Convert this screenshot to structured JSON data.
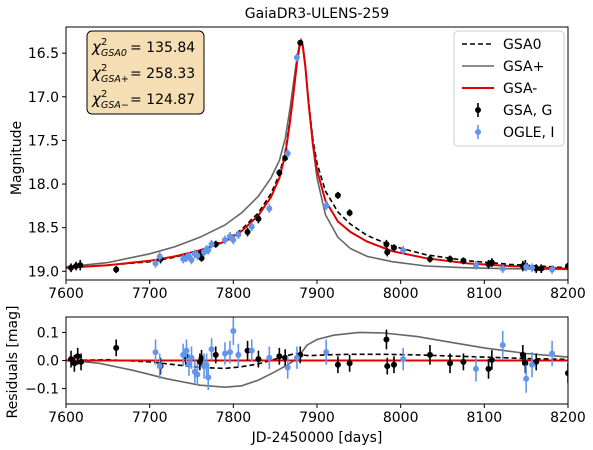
{
  "chart_data": [
    {
      "type": "scatter",
      "title": "GaiaDR3-ULENS-259",
      "xlabel": "",
      "ylabel": "Magnitude",
      "xlim": [
        7600,
        8200
      ],
      "ylim": [
        16.2,
        19.1
      ],
      "y_inverted": true,
      "xticks": [
        "7600",
        "7700",
        "7800",
        "7900",
        "8000",
        "8100",
        "8200"
      ],
      "yticks": [
        "16.5",
        "17.0",
        "17.5",
        "18.0",
        "18.5",
        "19.0"
      ],
      "legend_position": "top-right",
      "chi2_box": [
        "= 135.84",
        "= 258.33",
        "= 124.87"
      ],
      "chi2_labels": [
        "GSA0",
        "GSA+",
        "GSA−"
      ],
      "series": [
        {
          "name": "GSA0",
          "kind": "model",
          "color": "#000000",
          "dash": true,
          "x": [
            7600,
            7650,
            7700,
            7730,
            7760,
            7790,
            7810,
            7830,
            7845,
            7855,
            7862,
            7868,
            7872,
            7876,
            7879,
            7881,
            7883,
            7886,
            7890,
            7895,
            7900,
            7910,
            7925,
            7940,
            7960,
            7990,
            8030,
            8080,
            8130,
            8200
          ],
          "y": [
            18.96,
            18.93,
            18.89,
            18.84,
            18.76,
            18.65,
            18.52,
            18.33,
            18.11,
            17.89,
            17.63,
            17.24,
            16.92,
            16.6,
            16.42,
            16.37,
            16.42,
            16.65,
            17.05,
            17.48,
            17.76,
            18.08,
            18.32,
            18.46,
            18.59,
            18.71,
            18.81,
            18.88,
            18.92,
            18.96
          ]
        },
        {
          "name": "GSA+",
          "kind": "model",
          "color": "#666666",
          "dash": false,
          "x": [
            7600,
            7650,
            7700,
            7730,
            7760,
            7790,
            7810,
            7830,
            7845,
            7855,
            7862,
            7868,
            7872,
            7876,
            7879,
            7881,
            7883,
            7886,
            7890,
            7895,
            7900,
            7910,
            7925,
            7940,
            7960,
            7990,
            8030,
            8080,
            8130,
            8200
          ],
          "y": [
            18.95,
            18.9,
            18.8,
            18.72,
            18.61,
            18.47,
            18.33,
            18.14,
            17.93,
            17.73,
            17.48,
            17.12,
            16.83,
            16.56,
            16.4,
            16.35,
            16.4,
            16.63,
            17.06,
            17.56,
            17.93,
            18.35,
            18.61,
            18.74,
            18.83,
            18.89,
            18.94,
            18.96,
            18.97,
            18.98
          ]
        },
        {
          "name": "GSA-",
          "kind": "model",
          "color": "#e00000",
          "dash": false,
          "x": [
            7600,
            7650,
            7700,
            7730,
            7760,
            7790,
            7810,
            7830,
            7845,
            7855,
            7862,
            7868,
            7872,
            7876,
            7879,
            7881,
            7883,
            7886,
            7890,
            7895,
            7900,
            7910,
            7925,
            7940,
            7960,
            7990,
            8030,
            8080,
            8130,
            8200
          ],
          "y": [
            18.96,
            18.93,
            18.88,
            18.83,
            18.76,
            18.66,
            18.54,
            18.36,
            18.15,
            17.93,
            17.67,
            17.27,
            16.95,
            16.62,
            16.43,
            16.36,
            16.42,
            16.65,
            17.08,
            17.53,
            17.84,
            18.19,
            18.43,
            18.55,
            18.66,
            18.77,
            18.85,
            18.91,
            18.94,
            18.97
          ]
        },
        {
          "name": "GSA, G",
          "kind": "data",
          "color": "#000000",
          "x": [
            7606,
            7612,
            7617,
            7660,
            7713,
            7743,
            7760,
            7762,
            7779,
            7817,
            7830,
            7855,
            7862,
            7880,
            7925,
            7939,
            7983,
            7984,
            7992,
            8035,
            8059,
            8075,
            8105,
            8109,
            8146,
            8149,
            8162,
            8168,
            8200
          ],
          "y": [
            18.96,
            18.94,
            18.93,
            18.98,
            18.86,
            18.84,
            18.8,
            18.85,
            18.69,
            18.55,
            18.4,
            17.87,
            17.7,
            16.38,
            18.13,
            18.33,
            18.69,
            18.78,
            18.73,
            18.86,
            18.86,
            18.88,
            18.92,
            18.9,
            18.94,
            18.93,
            18.97,
            18.97,
            18.94
          ],
          "err": [
            0.05,
            0.05,
            0.06,
            0.04,
            0.05,
            0.05,
            0.05,
            0.04,
            0.04,
            0.05,
            0.05,
            0.04,
            0.04,
            0.03,
            0.04,
            0.04,
            0.05,
            0.05,
            0.04,
            0.04,
            0.04,
            0.04,
            0.05,
            0.05,
            0.06,
            0.06,
            0.05,
            0.05,
            0.04
          ]
        },
        {
          "name": "OGLE, I",
          "kind": "data",
          "color": "#6495ed",
          "x": [
            7707,
            7712,
            7740,
            7744,
            7747,
            7750,
            7754,
            7757,
            7765,
            7768,
            7770,
            7774,
            7790,
            7796,
            7800,
            7806,
            7822,
            7843,
            7865,
            7876,
            7911,
            8003,
            8090,
            8122,
            8150,
            8157,
            8181
          ],
          "y": [
            18.91,
            18.83,
            18.86,
            18.84,
            18.83,
            18.87,
            18.8,
            18.82,
            18.78,
            18.75,
            18.76,
            18.69,
            18.64,
            18.6,
            18.64,
            18.58,
            18.49,
            18.28,
            17.65,
            16.55,
            18.25,
            18.76,
            18.93,
            18.97,
            18.95,
            18.96,
            18.98
          ],
          "err": [
            0.05,
            0.05,
            0.05,
            0.05,
            0.05,
            0.05,
            0.05,
            0.05,
            0.05,
            0.05,
            0.05,
            0.05,
            0.05,
            0.05,
            0.05,
            0.05,
            0.05,
            0.05,
            0.05,
            0.05,
            0.05,
            0.05,
            0.05,
            0.05,
            0.05,
            0.05,
            0.05
          ]
        }
      ]
    },
    {
      "type": "scatter",
      "title": "",
      "xlabel": "JD-2450000 [days]",
      "ylabel": "Residuals [mag]",
      "xlim": [
        7600,
        8200
      ],
      "ylim": [
        -0.155,
        0.155
      ],
      "xticks": [
        "7600",
        "7700",
        "7800",
        "7900",
        "8000",
        "8100",
        "8200"
      ],
      "yticks": [
        "0.1",
        "0.0",
        "−0.1"
      ],
      "series": [
        {
          "name": "GSA0",
          "kind": "model",
          "color": "#000000",
          "dash": true,
          "x": [
            7600,
            7650,
            7700,
            7730,
            7760,
            7790,
            7810,
            7830,
            7850,
            7865,
            7875,
            7882,
            7890,
            7910,
            7940,
            7980,
            8020,
            8060,
            8100,
            8150,
            8200
          ],
          "y": [
            0,
            0.003,
            -0.005,
            -0.015,
            -0.025,
            -0.028,
            -0.022,
            -0.012,
            0.005,
            0.018,
            0.025,
            0.02,
            0.017,
            0.02,
            0.022,
            0.022,
            0.02,
            0.016,
            0.012,
            0.007,
            0.004
          ]
        },
        {
          "name": "GSA+",
          "kind": "model",
          "color": "#666666",
          "dash": false,
          "x": [
            7600,
            7640,
            7680,
            7720,
            7760,
            7790,
            7810,
            7830,
            7850,
            7865,
            7875,
            7882,
            7888,
            7900,
            7920,
            7950,
            7980,
            8020,
            8060,
            8100,
            8150,
            8200
          ],
          "y": [
            0.002,
            -0.01,
            -0.035,
            -0.065,
            -0.088,
            -0.095,
            -0.09,
            -0.07,
            -0.04,
            -0.015,
            0.005,
            0.03,
            0.055,
            0.075,
            0.09,
            0.1,
            0.098,
            0.085,
            0.065,
            0.045,
            0.025,
            0.012
          ]
        },
        {
          "name": "GSA-",
          "kind": "model",
          "color": "#e00000",
          "dash": false,
          "x": [
            7600,
            8200
          ],
          "y": [
            0,
            0
          ]
        },
        {
          "name": "GSA, G",
          "kind": "data",
          "color": "#000000",
          "x": [
            7606,
            7610,
            7614,
            7618,
            7660,
            7713,
            7743,
            7760,
            7762,
            7779,
            7817,
            7830,
            7855,
            7862,
            7880,
            7925,
            7939,
            7983,
            7984,
            7992,
            8035,
            8059,
            8075,
            8105,
            8109,
            8146,
            8149,
            8162,
            8200
          ],
          "y": [
            0.005,
            -0.01,
            0.015,
            -0.005,
            0.045,
            -0.02,
            0.015,
            -0.005,
            0.008,
            0.02,
            0.035,
            0.005,
            0.015,
            0.01,
            0.02,
            -0.015,
            -0.01,
            0.075,
            -0.02,
            -0.015,
            0.02,
            -0.01,
            -0.005,
            -0.03,
            0.002,
            0.02,
            -0.01,
            -0.005,
            -0.045
          ],
          "err": [
            0.03,
            0.03,
            0.03,
            0.03,
            0.03,
            0.03,
            0.03,
            0.03,
            0.03,
            0.03,
            0.035,
            0.03,
            0.03,
            0.03,
            0.03,
            0.03,
            0.03,
            0.035,
            0.03,
            0.03,
            0.035,
            0.035,
            0.03,
            0.035,
            0.035,
            0.035,
            0.035,
            0.03,
            0.035
          ]
        },
        {
          "name": "OGLE, I",
          "kind": "data",
          "color": "#6495ed",
          "x": [
            7707,
            7712,
            7740,
            7744,
            7747,
            7750,
            7754,
            7757,
            7765,
            7768,
            7770,
            7774,
            7790,
            7796,
            7800,
            7806,
            7822,
            7843,
            7865,
            7876,
            7911,
            8003,
            8090,
            8122,
            8150,
            8157,
            8181
          ],
          "y": [
            0.03,
            -0.02,
            0.02,
            0.035,
            -0.015,
            0.01,
            -0.04,
            -0.05,
            -0.02,
            -0.015,
            -0.06,
            0.04,
            0.025,
            0.03,
            0.105,
            0.02,
            0.035,
            0.01,
            -0.025,
            0.01,
            0.03,
            0.005,
            -0.03,
            0.055,
            -0.065,
            -0.015,
            0.025
          ],
          "err": [
            0.045,
            0.045,
            0.04,
            0.04,
            0.04,
            0.04,
            0.04,
            0.04,
            0.045,
            0.04,
            0.045,
            0.04,
            0.04,
            0.04,
            0.05,
            0.04,
            0.04,
            0.04,
            0.04,
            0.04,
            0.045,
            0.04,
            0.045,
            0.05,
            0.05,
            0.045,
            0.045
          ]
        }
      ]
    }
  ]
}
